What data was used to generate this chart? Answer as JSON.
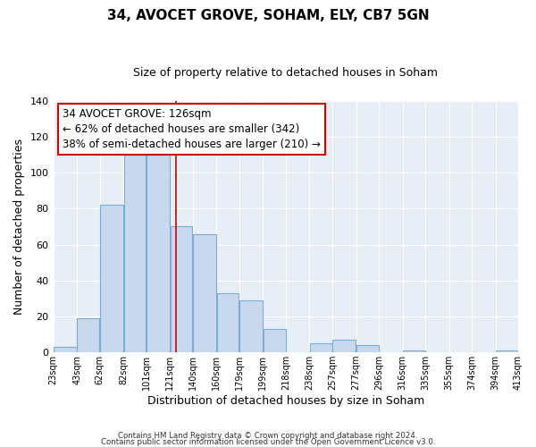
{
  "title": "34, AVOCET GROVE, SOHAM, ELY, CB7 5GN",
  "subtitle": "Size of property relative to detached houses in Soham",
  "xlabel": "Distribution of detached houses by size in Soham",
  "ylabel": "Number of detached properties",
  "bar_color": "#c8d9ee",
  "bar_edgecolor": "#7aadd4",
  "plot_bg_color": "#e8eef5",
  "vline_x": 126,
  "vline_color": "#cc0000",
  "bin_edges": [
    23,
    43,
    62,
    82,
    101,
    121,
    140,
    160,
    179,
    199,
    218,
    238,
    257,
    277,
    296,
    316,
    335,
    355,
    374,
    394,
    413
  ],
  "bin_labels": [
    "23sqm",
    "43sqm",
    "62sqm",
    "82sqm",
    "101sqm",
    "121sqm",
    "140sqm",
    "160sqm",
    "179sqm",
    "199sqm",
    "218sqm",
    "238sqm",
    "257sqm",
    "277sqm",
    "296sqm",
    "316sqm",
    "335sqm",
    "355sqm",
    "374sqm",
    "394sqm",
    "413sqm"
  ],
  "counts": [
    3,
    19,
    82,
    110,
    113,
    70,
    66,
    33,
    29,
    13,
    0,
    5,
    7,
    4,
    0,
    1,
    0,
    0,
    0,
    1
  ],
  "ylim": [
    0,
    140
  ],
  "yticks": [
    0,
    20,
    40,
    60,
    80,
    100,
    120,
    140
  ],
  "annotation_title": "34 AVOCET GROVE: 126sqm",
  "annotation_line1": "← 62% of detached houses are smaller (342)",
  "annotation_line2": "38% of semi-detached houses are larger (210) →",
  "annotation_box_color": "#ffffff",
  "annotation_box_edgecolor": "#cc0000",
  "footer_line1": "Contains HM Land Registry data © Crown copyright and database right 2024.",
  "footer_line2": "Contains public sector information licensed under the Open Government Licence v3.0.",
  "background_color": "#ffffff",
  "grid_color": "#ffffff",
  "title_fontsize": 11,
  "subtitle_fontsize": 9,
  "ylabel_fontsize": 9,
  "xlabel_fontsize": 9
}
